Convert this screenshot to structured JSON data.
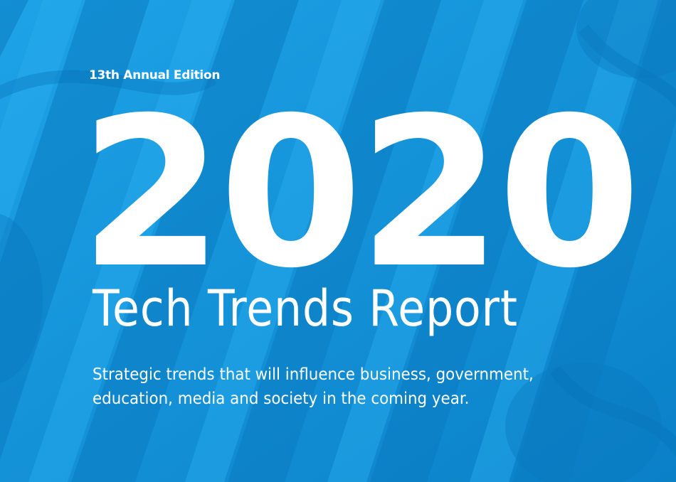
{
  "cover": {
    "edition": "13th Annual Edition",
    "year": "2020",
    "title": "Tech Trends Report",
    "subtitle_line1": "Strategic trends that will influence business, government,",
    "subtitle_line2": "education, media and society in the coming year."
  },
  "colors": {
    "background": "#0e8fd6",
    "text": "#ffffff"
  }
}
